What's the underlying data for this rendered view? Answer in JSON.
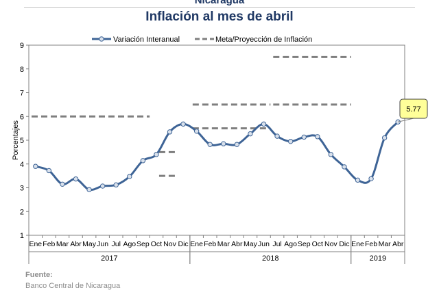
{
  "header": {
    "country": "Nicaragua",
    "title": "Inflación al mes de abril"
  },
  "footer": {
    "label": "Fuente:",
    "source": "Banco Central de Nicaragua"
  },
  "colors": {
    "line": "#3e6496",
    "marker_fill": "#d9e1ec",
    "target": "#7f7f7f",
    "callout_fill": "#ffff99",
    "axis": "#808080",
    "grid": "#ffffff"
  },
  "chart_data": {
    "type": "line",
    "ylabel": "Porcentajes",
    "ylim": [
      1,
      9
    ],
    "yticks": [
      "1",
      "2",
      "3",
      "4",
      "5",
      "6",
      "7",
      "8",
      "9"
    ],
    "grid": false,
    "legend_position": "top-center",
    "months": [
      "Ene",
      "Feb",
      "Mar",
      "Abr",
      "May",
      "Jun",
      "Jul",
      "Ago",
      "Sep",
      "Oct",
      "Nov",
      "Dic",
      "Ene",
      "Feb",
      "Mar",
      "Abr",
      "May",
      "Jun",
      "Jul",
      "Ago",
      "Sep",
      "Oct",
      "Nov",
      "Dic",
      "Ene",
      "Feb",
      "Mar",
      "Abr"
    ],
    "years": [
      {
        "label": "2017",
        "start": 0,
        "end": 11
      },
      {
        "label": "2018",
        "start": 12,
        "end": 23
      },
      {
        "label": "2019",
        "start": 24,
        "end": 27
      }
    ],
    "series": [
      {
        "name": "Variación Interanual",
        "style": "line-marker",
        "values": [
          3.9,
          3.72,
          3.15,
          3.37,
          2.92,
          3.07,
          3.12,
          3.47,
          4.14,
          4.4,
          5.35,
          5.68,
          5.38,
          4.82,
          4.85,
          4.82,
          5.27,
          5.68,
          5.17,
          4.95,
          5.13,
          5.15,
          4.4,
          3.88,
          3.32,
          3.38,
          5.1,
          5.77
        ],
        "marker_indices": [
          0,
          1,
          2,
          3,
          4,
          5,
          6,
          7,
          8,
          9,
          10,
          11,
          12,
          13,
          14,
          15,
          16,
          17,
          18,
          19,
          20,
          21,
          22,
          23,
          24,
          25,
          26,
          27
        ]
      },
      {
        "name": "Meta/Proyección de Inflación",
        "style": "dashed",
        "segments": [
          {
            "x_start": 0,
            "x_end": 8.5,
            "y": 6.0
          },
          {
            "x_start": 9.5,
            "x_end": 10.5,
            "y": 4.5
          },
          {
            "x_start": 9.5,
            "x_end": 10.5,
            "y": 3.5
          },
          {
            "x_start": 12,
            "x_end": 17.5,
            "y": 6.5
          },
          {
            "x_start": 12,
            "x_end": 17.5,
            "y": 5.5
          },
          {
            "x_start": 18,
            "x_end": 23.5,
            "y": 8.5
          },
          {
            "x_start": 18,
            "x_end": 23.5,
            "y": 6.5
          }
        ]
      }
    ],
    "annotations": [
      {
        "text": "5.77",
        "index": 27,
        "value": 5.77
      }
    ]
  }
}
